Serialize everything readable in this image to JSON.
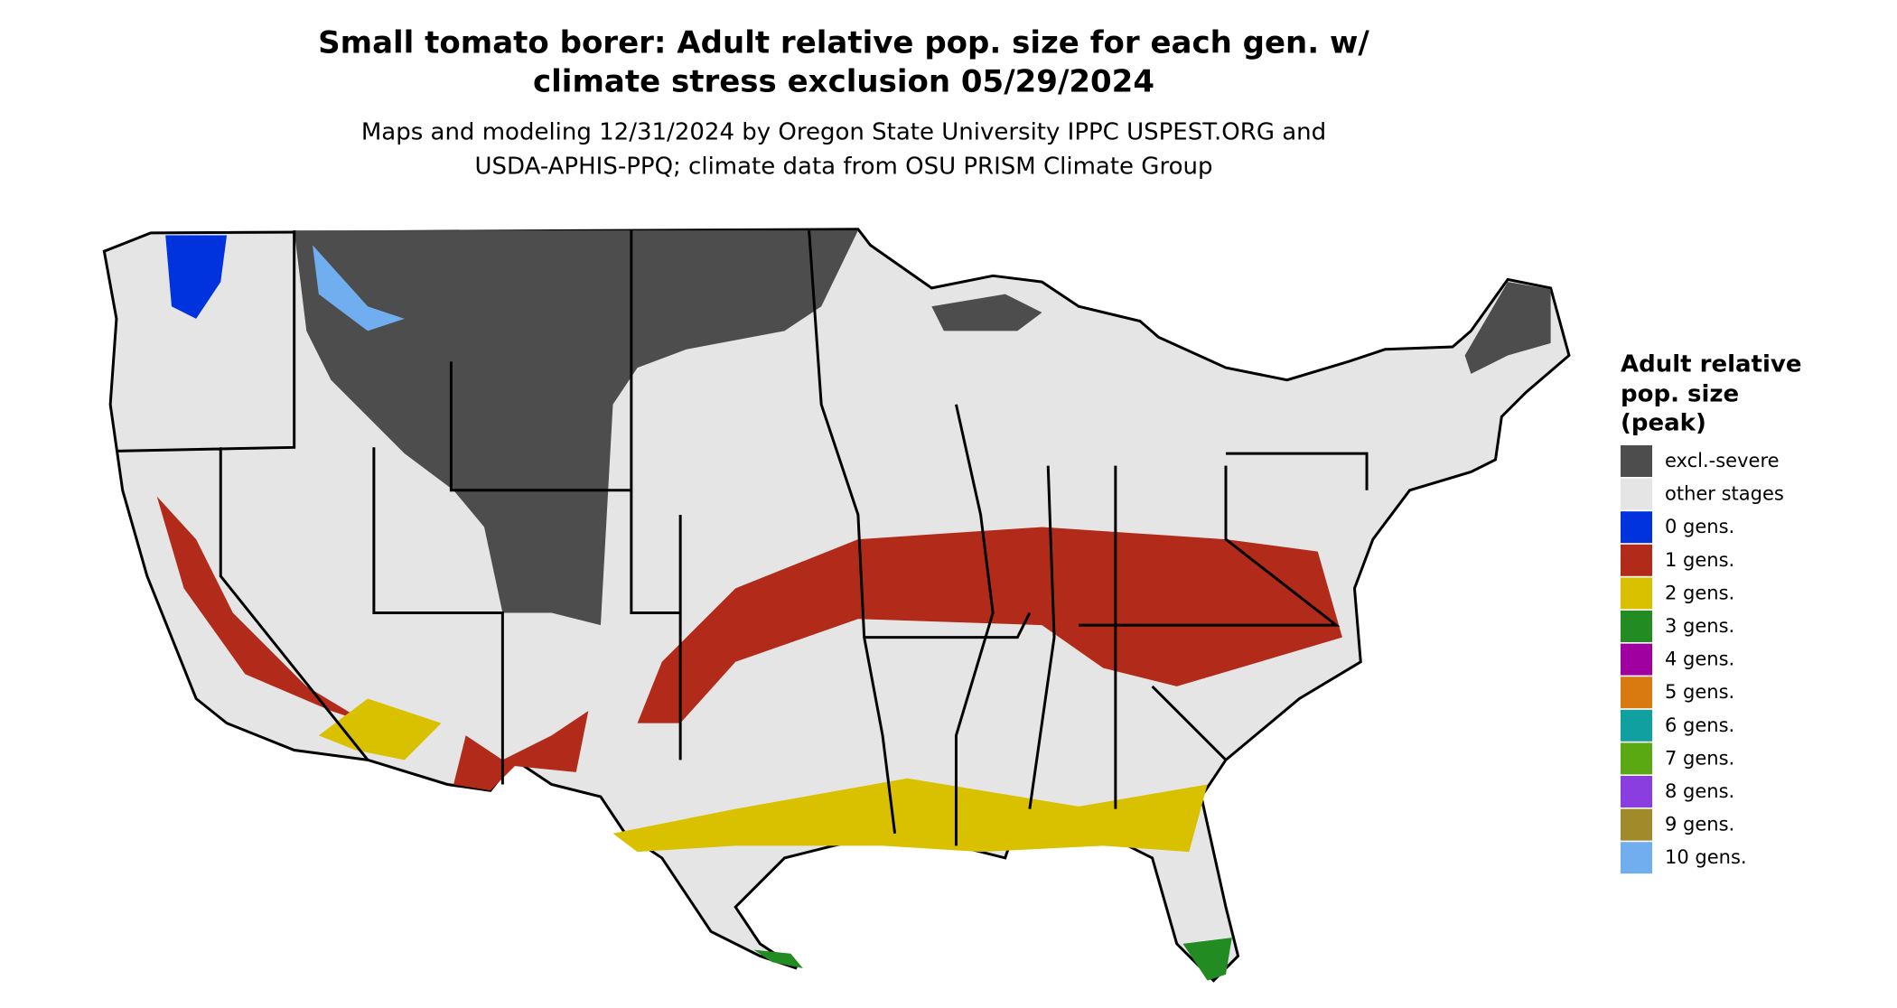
{
  "title": [
    "Small tomato borer: Adult relative pop. size for each gen. w/",
    "climate stress exclusion 05/29/2024"
  ],
  "subtitle": [
    "Maps and modeling 12/31/2024 by Oregon State University IPPC USPEST.ORG and",
    "USDA-APHIS-PPQ; climate data from OSU PRISM Climate Group"
  ],
  "legend": {
    "title": [
      "Adult relative",
      "pop. size",
      "(peak)"
    ],
    "items": [
      {
        "label": "excl.-severe",
        "color": "#4d4d4d"
      },
      {
        "label": "other stages",
        "color": "#e5e5e5"
      },
      {
        "label": "0 gens.",
        "color": "#0033dd"
      },
      {
        "label": "1 gens.",
        "color": "#b22a1a"
      },
      {
        "label": "2 gens.",
        "color": "#d9c100"
      },
      {
        "label": "3 gens.",
        "color": "#228b22"
      },
      {
        "label": "4 gens.",
        "color": "#a000a0"
      },
      {
        "label": "5 gens.",
        "color": "#d97a10"
      },
      {
        "label": "6 gens.",
        "color": "#10a0a0"
      },
      {
        "label": "7 gens.",
        "color": "#5aa812"
      },
      {
        "label": "8 gens.",
        "color": "#8a3ee0"
      },
      {
        "label": "9 gens.",
        "color": "#a08a2a"
      },
      {
        "label": "10 gens.",
        "color": "#70aef0"
      }
    ]
  }
}
